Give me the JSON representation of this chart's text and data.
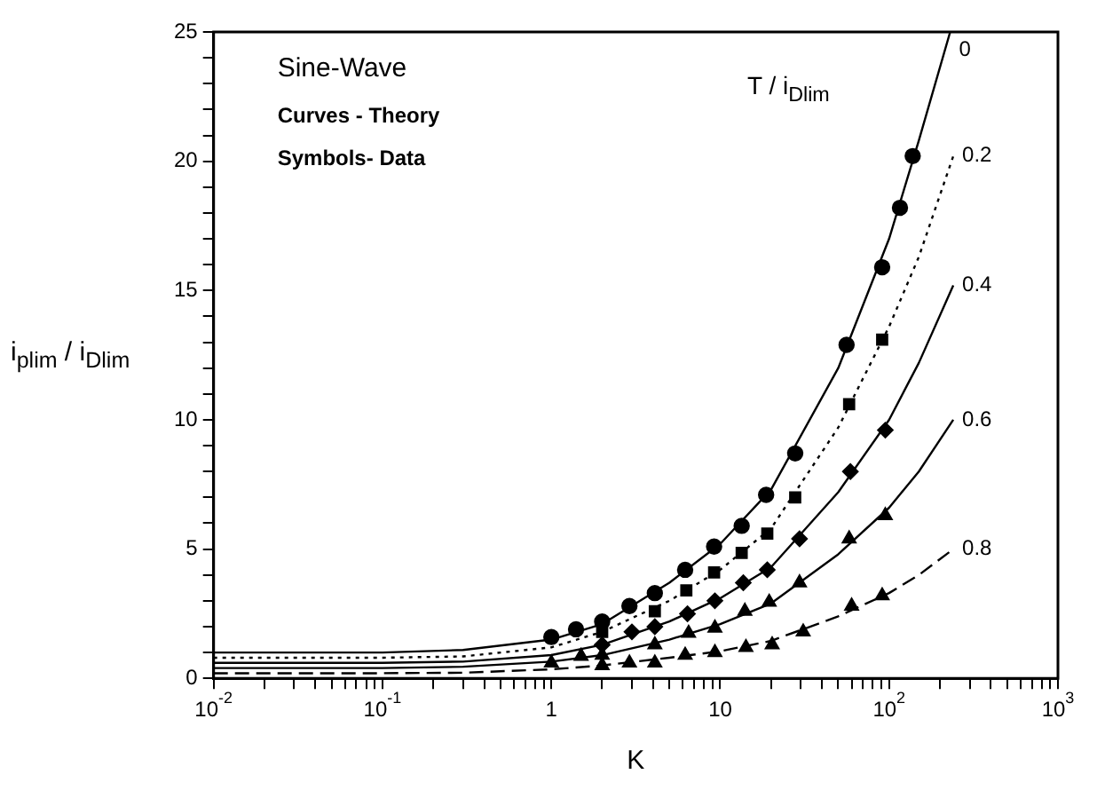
{
  "chart_data": {
    "type": "line",
    "xlabel": "K",
    "ylabel": "i$_{plim}$ / i$_{Dlim}$",
    "legend_title": "T / i$_{Dlim}$",
    "annotations": [
      "Sine-Wave",
      "Curves - Theory",
      "Symbols- Data"
    ],
    "log": "x",
    "grid": false,
    "xlim": [
      0.01,
      1000
    ],
    "ylim": [
      0,
      25
    ],
    "xticks": [
      {
        "value": 0.01,
        "label": "10$^{-2}$"
      },
      {
        "value": 0.02,
        "label": null
      },
      {
        "value": 0.03,
        "label": null
      },
      {
        "value": 0.04,
        "label": null
      },
      {
        "value": 0.05,
        "label": null
      },
      {
        "value": 0.06,
        "label": null
      },
      {
        "value": 0.07,
        "label": null
      },
      {
        "value": 0.08,
        "label": null
      },
      {
        "value": 0.09,
        "label": null
      },
      {
        "value": 0.1,
        "label": "10$^{-1}$"
      },
      {
        "value": 0.2,
        "label": null
      },
      {
        "value": 0.3,
        "label": null
      },
      {
        "value": 0.4,
        "label": null
      },
      {
        "value": 0.5,
        "label": null
      },
      {
        "value": 0.6,
        "label": null
      },
      {
        "value": 0.7,
        "label": null
      },
      {
        "value": 0.8,
        "label": null
      },
      {
        "value": 0.9,
        "label": null
      },
      {
        "value": 1,
        "label": "1"
      },
      {
        "value": 2,
        "label": null
      },
      {
        "value": 3,
        "label": null
      },
      {
        "value": 4,
        "label": null
      },
      {
        "value": 5,
        "label": null
      },
      {
        "value": 6,
        "label": null
      },
      {
        "value": 7,
        "label": null
      },
      {
        "value": 8,
        "label": null
      },
      {
        "value": 9,
        "label": null
      },
      {
        "value": 10,
        "label": "10"
      },
      {
        "value": 20,
        "label": null
      },
      {
        "value": 30,
        "label": null
      },
      {
        "value": 40,
        "label": null
      },
      {
        "value": 50,
        "label": null
      },
      {
        "value": 60,
        "label": null
      },
      {
        "value": 70,
        "label": null
      },
      {
        "value": 80,
        "label": null
      },
      {
        "value": 90,
        "label": null
      },
      {
        "value": 100,
        "label": "10$^{2}$"
      },
      {
        "value": 200,
        "label": null
      },
      {
        "value": 300,
        "label": null
      },
      {
        "value": 400,
        "label": null
      },
      {
        "value": 500,
        "label": null
      },
      {
        "value": 600,
        "label": null
      },
      {
        "value": 700,
        "label": null
      },
      {
        "value": 800,
        "label": null
      },
      {
        "value": 900,
        "label": null
      },
      {
        "value": 1000,
        "label": "10$^{3}$"
      }
    ],
    "yticks": [
      0,
      {
        "value": 1,
        "label": null
      },
      {
        "value": 2,
        "label": null
      },
      {
        "value": 3,
        "label": null
      },
      {
        "value": 4,
        "label": null
      },
      5,
      {
        "value": 6,
        "label": null
      },
      {
        "value": 7,
        "label": null
      },
      {
        "value": 8,
        "label": null
      },
      {
        "value": 9,
        "label": null
      },
      10,
      {
        "value": 11,
        "label": null
      },
      {
        "value": 12,
        "label": null
      },
      {
        "value": 13,
        "label": null
      },
      {
        "value": 14,
        "label": null
      },
      15,
      {
        "value": 16,
        "label": null
      },
      {
        "value": 17,
        "label": null
      },
      {
        "value": 18,
        "label": null
      },
      {
        "value": 19,
        "label": null
      },
      20,
      {
        "value": 21,
        "label": null
      },
      {
        "value": 22,
        "label": null
      },
      {
        "value": 23,
        "label": null
      },
      {
        "value": 24,
        "label": null
      },
      25
    ],
    "series": [
      {
        "name": "0",
        "color": "#000000",
        "line_style": "solid",
        "marker": "none",
        "x": [
          0.01,
          0.1,
          0.3,
          1,
          2,
          5,
          10,
          20,
          50,
          100,
          150,
          230
        ],
        "values": [
          1.0,
          1.0,
          1.1,
          1.5,
          2.1,
          3.7,
          5.2,
          7.3,
          12.0,
          17.0,
          20.8,
          25
        ]
      },
      {
        "name": "0.2",
        "color": "#000000",
        "line_style": "dotted",
        "marker": "none",
        "x": [
          0.01,
          0.1,
          0.3,
          1,
          2,
          5,
          10,
          20,
          50,
          100,
          150,
          240
        ],
        "values": [
          0.8,
          0.8,
          0.85,
          1.2,
          1.8,
          3.0,
          4.2,
          5.8,
          9.7,
          13.6,
          16.3,
          20.2
        ]
      },
      {
        "name": "0.4",
        "color": "#000000",
        "line_style": "solid",
        "marker": "none",
        "x": [
          0.01,
          0.1,
          0.3,
          1,
          2,
          5,
          10,
          20,
          50,
          100,
          150,
          240
        ],
        "values": [
          0.6,
          0.6,
          0.65,
          0.9,
          1.3,
          2.2,
          3.1,
          4.3,
          7.2,
          10.0,
          12.2,
          15.2
        ]
      },
      {
        "name": "0.6",
        "color": "#000000",
        "line_style": "solid",
        "marker": "none",
        "x": [
          0.01,
          0.1,
          0.3,
          1,
          2,
          5,
          10,
          20,
          50,
          100,
          150,
          240
        ],
        "values": [
          0.4,
          0.4,
          0.45,
          0.65,
          0.9,
          1.5,
          2.1,
          2.9,
          4.8,
          6.6,
          8.0,
          10.0
        ]
      },
      {
        "name": "0.8",
        "color": "#000000",
        "line_style": "dashed",
        "marker": "none",
        "x": [
          0.01,
          0.1,
          0.3,
          1,
          2,
          5,
          10,
          20,
          50,
          100,
          150,
          240
        ],
        "values": [
          0.2,
          0.2,
          0.22,
          0.35,
          0.5,
          0.8,
          1.05,
          1.45,
          2.4,
          3.3,
          4.0,
          5.0
        ]
      },
      {
        "type": "scatter",
        "color": "#000000",
        "marker": "circle",
        "x": [
          1.0,
          1.4,
          2.0,
          2.9,
          4.1,
          6.2,
          9.2,
          13.4,
          18.7,
          27.8,
          56,
          91,
          116,
          138
        ],
        "values": [
          1.6,
          1.9,
          2.2,
          2.8,
          3.3,
          4.2,
          5.1,
          5.9,
          7.1,
          8.7,
          12.9,
          15.9,
          18.2,
          20.2
        ]
      },
      {
        "type": "scatter",
        "color": "#000000",
        "marker": "square",
        "x": [
          2.0,
          4.1,
          6.3,
          9.2,
          13.4,
          19,
          27.8,
          58,
          91
        ],
        "values": [
          1.8,
          2.6,
          3.4,
          4.1,
          4.85,
          5.6,
          7.0,
          10.6,
          13.1
        ]
      },
      {
        "type": "scatter",
        "color": "#000000",
        "marker": "diamond",
        "x": [
          2.0,
          3.0,
          4.1,
          6.4,
          9.3,
          13.7,
          19,
          29.5,
          59,
          95
        ],
        "values": [
          1.3,
          1.8,
          2.0,
          2.5,
          3.0,
          3.7,
          4.2,
          5.4,
          8.0,
          9.6
        ]
      },
      {
        "type": "scatter",
        "color": "#000000",
        "marker": "triangle",
        "x": [
          1.0,
          1.5,
          2.0,
          4.1,
          6.5,
          9.3,
          14,
          19.5,
          29.5,
          58,
          95
        ],
        "values": [
          0.6,
          0.86,
          0.9,
          1.3,
          1.75,
          1.95,
          2.6,
          2.95,
          3.7,
          5.4,
          6.3
        ]
      },
      {
        "type": "scatter",
        "color": "#000000",
        "marker": "triangle",
        "x": [
          2.0,
          2.9,
          4.1,
          6.2,
          9.3,
          14.2,
          20.3,
          31,
          60,
          91
        ],
        "values": [
          0.5,
          0.6,
          0.6,
          0.9,
          1.0,
          1.2,
          1.3,
          1.8,
          2.8,
          3.2
        ]
      }
    ]
  }
}
